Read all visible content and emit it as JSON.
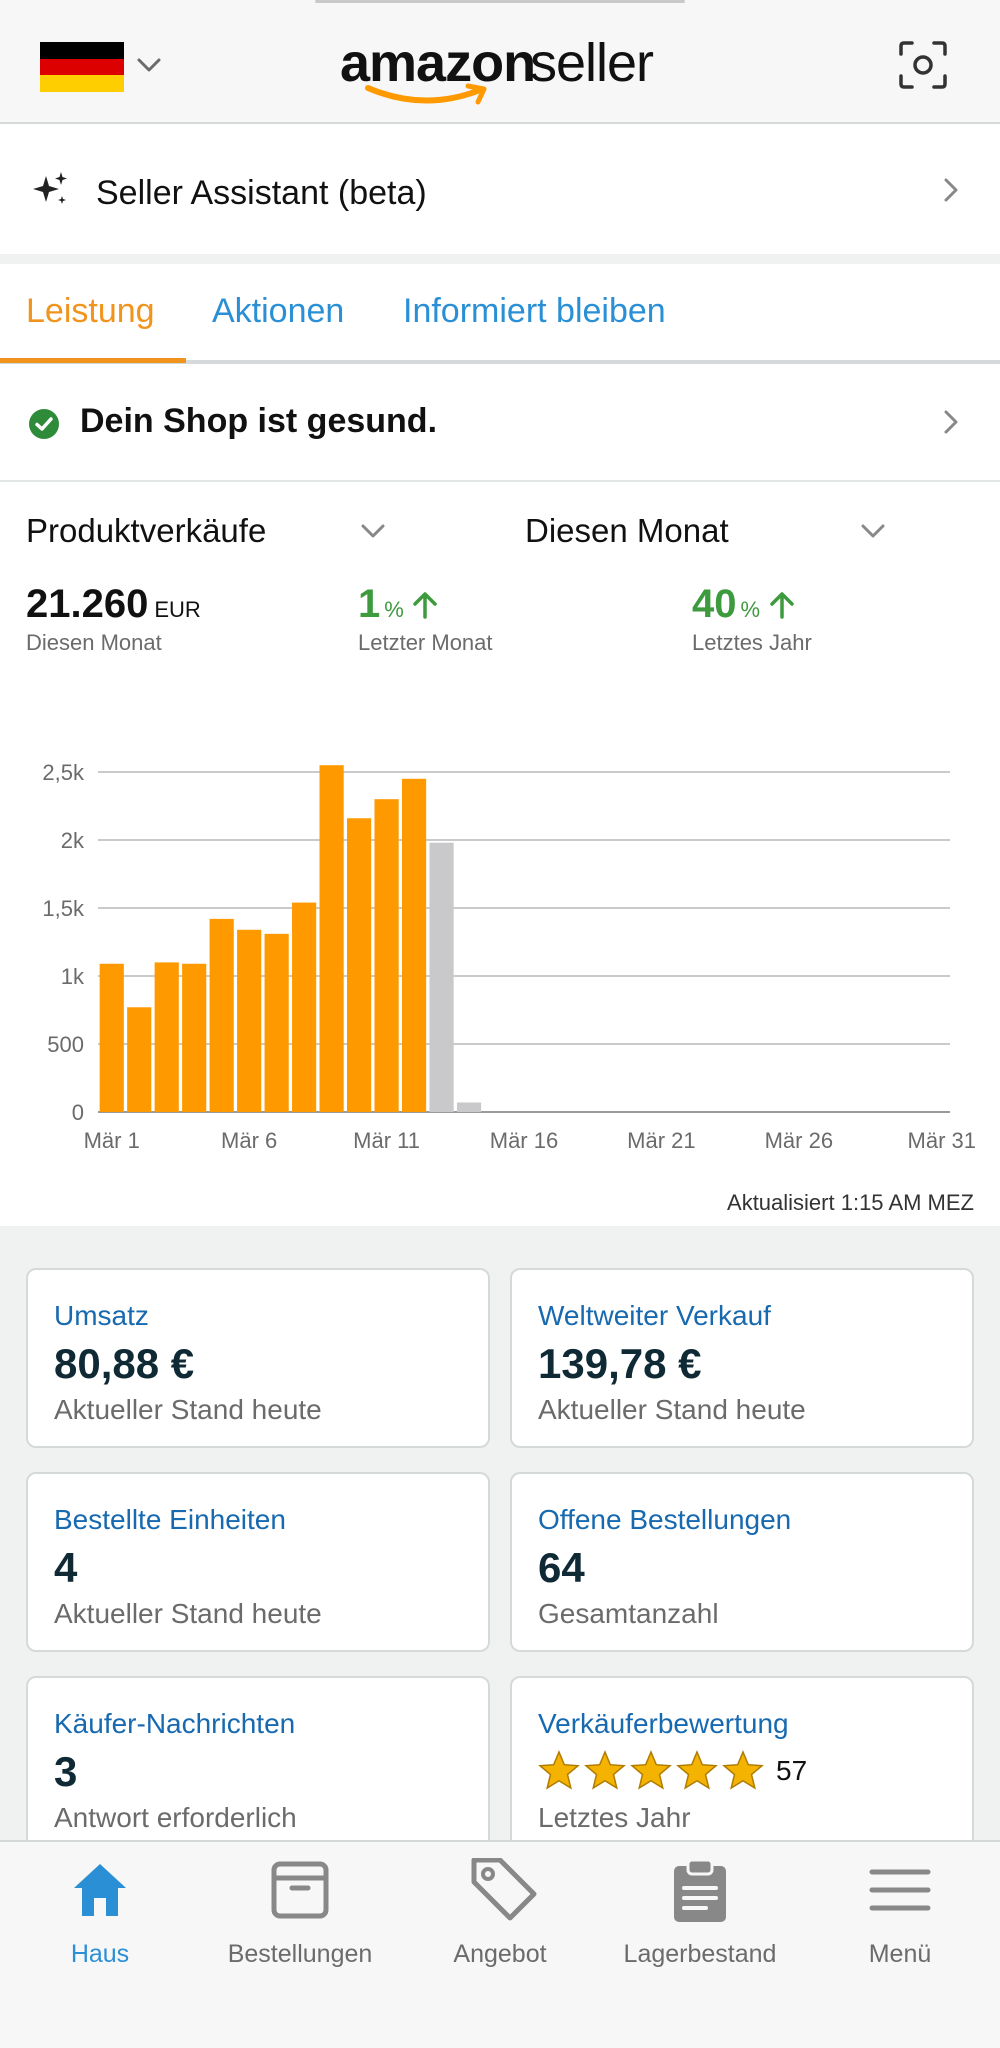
{
  "header": {
    "flag_icon": "germany-flag-icon",
    "logo_word_bold": "amazon",
    "logo_word_light": "seller",
    "scan_icon": "scan-icon"
  },
  "assistant": {
    "label": "Seller Assistant (beta)",
    "icon": "sparkle-icon"
  },
  "tabs": [
    {
      "label": "Leistung",
      "active": true
    },
    {
      "label": "Aktionen",
      "active": false
    },
    {
      "label": "Informiert bleiben",
      "active": false
    }
  ],
  "health": {
    "label": "Dein Shop ist gesund."
  },
  "metrics": {
    "metric_select": "Produktverkäufe",
    "period_select": "Diesen Monat",
    "total_value": "21.260",
    "total_unit": "EUR",
    "total_caption": "Diesen Monat",
    "last_month_value": "1",
    "last_month_unit": "%",
    "last_month_caption": "Letzter Monat",
    "last_year_value": "40",
    "last_year_unit": "%",
    "last_year_caption": "Letztes Jahr",
    "trend_color": "#3d9a3d"
  },
  "chart_data": {
    "type": "bar",
    "x_tick_labels": [
      "Mär 1",
      "Mär 6",
      "Mär 11",
      "Mär 16",
      "Mär 21",
      "Mär 26",
      "Mär 31"
    ],
    "y_tick_labels": [
      "0",
      "500",
      "1k",
      "1,5k",
      "2k",
      "2,5k"
    ],
    "y_ticks": [
      0,
      500,
      1000,
      1500,
      2000,
      2500
    ],
    "ylim": [
      0,
      2500
    ],
    "x_days": [
      1,
      31
    ],
    "grid": true,
    "series": [
      {
        "color": "#ff9900",
        "days": [
          1,
          2,
          3,
          4,
          5,
          6,
          7,
          8,
          9,
          10,
          11,
          12
        ],
        "values": [
          1090,
          770,
          1100,
          1090,
          1420,
          1340,
          1310,
          1540,
          2550,
          2160,
          2300,
          2450
        ]
      },
      {
        "color": "#c9c9cb",
        "days": [
          13,
          14
        ],
        "values": [
          1980,
          70
        ]
      }
    ]
  },
  "updated_text": "Aktualisiert 1:15 AM MEZ",
  "cards": [
    {
      "title": "Umsatz",
      "value": "80,88 €",
      "sub": "Aktueller Stand heute"
    },
    {
      "title": "Weltweiter Verkauf",
      "value": "139,78 €",
      "sub": "Aktueller Stand heute"
    },
    {
      "title": "Bestellte Einheiten",
      "value": "4",
      "sub": "Aktueller Stand heute"
    },
    {
      "title": "Offene Bestellungen",
      "value": "64",
      "sub": "Gesamtanzahl"
    },
    {
      "title": "Käufer-Nachrichten",
      "value": "3",
      "sub": "Antwort erforderlich"
    },
    {
      "title": "Verkäuferbewertung",
      "stars": 5,
      "stars_max": 5,
      "rating_count": "57",
      "sub": "Letztes Jahr"
    }
  ],
  "bottom_nav": [
    {
      "label": "Haus",
      "icon": "home-icon",
      "active": true
    },
    {
      "label": "Bestellungen",
      "icon": "box-icon",
      "active": false
    },
    {
      "label": "Angebot",
      "icon": "tag-icon",
      "active": false
    },
    {
      "label": "Lagerbestand",
      "icon": "clipboard-icon",
      "active": false
    },
    {
      "label": "Menü",
      "icon": "hamburger-menu-icon",
      "active": false
    }
  ],
  "colors": {
    "accent_orange": "#f0941d",
    "link_blue": "#2a8fd4",
    "card_title_blue": "#1769b0",
    "star_gold": "#f5b301"
  }
}
